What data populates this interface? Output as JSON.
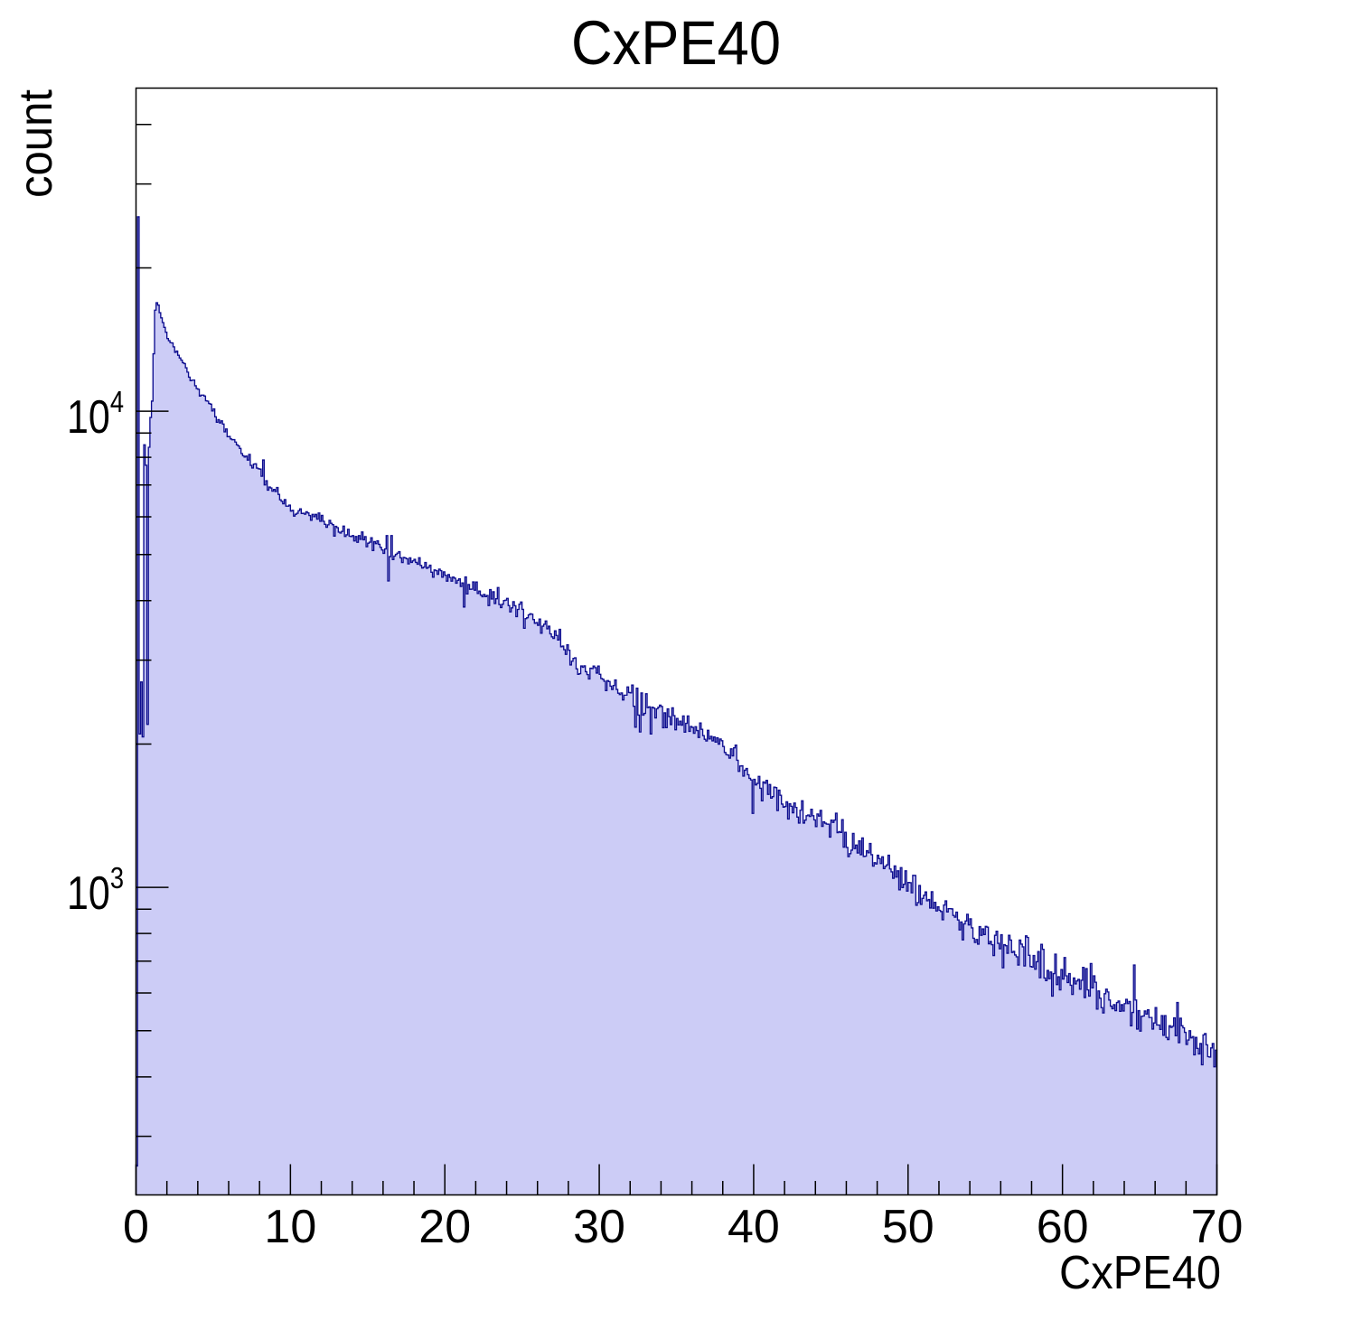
{
  "title": "CxPE40",
  "colors": {
    "background": "#ffffff",
    "hist_fill": "#ccccf6",
    "hist_line": "#0d0d8f",
    "axis": "#000000",
    "text": "#000000"
  },
  "chart_data": {
    "type": "bar",
    "subtype": "filled-step-histogram",
    "title": "CxPE40",
    "xlabel": "CxPE40",
    "ylabel": "count",
    "x_start": 0,
    "bin_width": 0.1,
    "n_bins": 700,
    "xlim": [
      0,
      70
    ],
    "ylim": [
      226,
      47700
    ],
    "yscale": "log",
    "xscale": "linear",
    "grid": false,
    "legend": false,
    "x_major_ticks": [
      0,
      10,
      20,
      30,
      40,
      50,
      60,
      70
    ],
    "x_tick_labels": [
      "0",
      "10",
      "20",
      "30",
      "40",
      "50",
      "60",
      "70"
    ],
    "x_minor_tick_step": 2,
    "y_major_ticks": [
      1000,
      10000
    ],
    "y_tick_labels": [
      {
        "base": "10",
        "exp": "3"
      },
      {
        "base": "10",
        "exp": "4"
      }
    ],
    "counts": [
      260,
      25600,
      2100,
      2700,
      2070,
      8500,
      7700,
      2200,
      8400,
      9700,
      10500,
      13200,
      16300,
      16900,
      16700,
      16100,
      15700,
      15350,
      15000,
      14650,
      14207,
      14061,
      13929,
      13910,
      13650,
      13292,
      13372,
      13104,
      12933,
      12804,
      12640,
      12586,
      12333,
      12078,
      11787,
      11592,
      11619,
      11621,
      11311,
      11154,
      11119,
      10759,
      10807,
      10811,
      10762,
      10518,
      10496,
      10379,
      10347,
      10010,
      10110,
      9730,
      9477,
      9602,
      9447,
      9545,
      9396,
      9050,
      9177,
      8841,
      8849,
      8744,
      8711,
      8714,
      8613,
      8499,
      8453,
      8352,
      8147,
      8059,
      8012,
      8049,
      7895,
      8116,
      7695,
      7600,
      7743,
      7755,
      7594,
      7570,
      7559,
      7302,
      7900,
      7000,
      7144,
      6826,
      6928,
      6900,
      6792,
      6849,
      6784,
      6915,
      6687,
      6513,
      6468,
      6392,
      6520,
      6317,
      6317,
      6349,
      6169,
      6191,
      6021,
      6074,
      6104,
      6180,
      6237,
      6098,
      6105,
      6076,
      6149,
      6115,
      6039,
      5900,
      6070,
      6004,
      6071,
      5934,
      6113,
      5873,
      6042,
      5873,
      5787,
      5705,
      5772,
      5898,
      5814,
      5777,
      5467,
      5729,
      5694,
      5573,
      5549,
      5590,
      5736,
      5458,
      5499,
      5650,
      5464,
      5455,
      5480,
      5339,
      5455,
      5306,
      5480,
      5381,
      5575,
      5370,
      5453,
      5192,
      5281,
      5307,
      5423,
      5097,
      5322,
      5271,
      5342,
      5252,
      5177,
      5111,
      5029,
      5137,
      5480,
      4400,
      4950,
      5480,
      4880,
      4964,
      5003,
      5033,
      5070,
      4920,
      4810,
      4930,
      4918,
      4899,
      4778,
      4921,
      4813,
      4849,
      4885,
      4813,
      4772,
      4923,
      4742,
      4683,
      4705,
      4811,
      4679,
      4701,
      4748,
      4591,
      4480,
      4640,
      4624,
      4544,
      4659,
      4626,
      4482,
      4599,
      4523,
      4397,
      4537,
      4475,
      4397,
      4483,
      4460,
      4352,
      4413,
      4444,
      4284,
      4359,
      3880,
      4487,
      4132,
      4324,
      4227,
      4229,
      4379,
      4207,
      4378,
      4142,
      4190,
      4108,
      4077,
      4122,
      4079,
      4103,
      3908,
      4220,
      4032,
      4176,
      3946,
      4038,
      4263,
      3927,
      3869,
      3932,
      4002,
      4010,
      4045,
      3907,
      3789,
      3863,
      3980,
      3903,
      3703,
      3834,
      3932,
      3975,
      3836,
      3500,
      3668,
      3683,
      3735,
      3755,
      3746,
      3651,
      3586,
      3599,
      3551,
      3660,
      3417,
      3536,
      3569,
      3625,
      3491,
      3535,
      3407,
      3358,
      3333,
      3457,
      3381,
      3308,
      3483,
      3201,
      3212,
      3156,
      3085,
      3231,
      3148,
      2932,
      2985,
      3026,
      3035,
      2876,
      2802,
      2811,
      2917,
      2900,
      2919,
      2837,
      2799,
      2739,
      2886,
      2881,
      2915,
      2893,
      2819,
      2915,
      2801,
      2746,
      2735,
      2710,
      2590,
      2718,
      2705,
      2645,
      2604,
      2654,
      2726,
      2604,
      2557,
      2540,
      2561,
      2475,
      2533,
      2533,
      2636,
      2566,
      2562,
      2660,
      2400,
      2170,
      2620,
      2300,
      2120,
      2560,
      2300,
      2319,
      2550,
      2384,
      2394,
      2100,
      2390,
      2380,
      2269,
      2371,
      2390,
      2414,
      2398,
      2164,
      2326,
      2165,
      2370,
      2283,
      2197,
      2382,
      2294,
      2143,
      2263,
      2193,
      2234,
      2191,
      2291,
      2118,
      2210,
      2291,
      2126,
      2177,
      2167,
      2107,
      2175,
      2134,
      2065,
      2214,
      2147,
      2083,
      2047,
      2030,
      2137,
      2050,
      2076,
      2031,
      2069,
      2019,
      2061,
      1999,
      2049,
      2032,
      1976,
      1920,
      1900,
      1896,
      1868,
      1954,
      1889,
      1963,
      1989,
      1849,
      1752,
      1798,
      1800,
      1713,
      1762,
      1777,
      1724,
      1694,
      1681,
      1430,
      1686,
      1641,
      1653,
      1710,
      1615,
      1520,
      1665,
      1655,
      1678,
      1568,
      1644,
      1540,
      1551,
      1624,
      1620,
      1450,
      1600,
      1561,
      1496,
      1474,
      1479,
      1512,
      1392,
      1498,
      1480,
      1434,
      1503,
      1472,
      1405,
      1365,
      1452,
      1520,
      1365,
      1384,
      1414,
      1419,
      1409,
      1459,
      1414,
      1386,
      1342,
      1426,
      1412,
      1451,
      1343,
      1373,
      1364,
      1358,
      1357,
      1275,
      1384,
      1369,
      1384,
      1431,
      1303,
      1309,
      1304,
      1387,
      1215,
      1305,
      1213,
      1160,
      1177,
      1197,
      1298,
      1206,
      1227,
      1181,
      1252,
      1171,
      1270,
      1161,
      1163,
      1194,
      1182,
      1236,
      1171,
      1108,
      1127,
      1120,
      1168,
      1149,
      1122,
      1159,
      1095,
      1107,
      1115,
      1168,
      1093,
      1078,
      1045,
      1109,
      1051,
      1083,
      988,
      1100,
      999,
      1015,
      1083,
      982,
      1024,
      1023,
      974,
      1060,
      1059,
      917,
      929,
      1009,
      921,
      948,
      962,
      978,
      937,
      943,
      905,
      979,
      904,
      930,
      892,
      910,
      895,
      890,
      855,
      918,
      937,
      888,
      902,
      902,
      901,
      873,
      866,
      887,
      854,
      814,
      846,
      776,
      838,
      850,
      878,
      834,
      859,
      822,
      782,
      766,
      777,
      760,
      827,
      793,
      818,
      796,
      828,
      825,
      761,
      770,
      758,
      719,
      793,
      809,
      763,
      743,
      795,
      678,
      758,
      754,
      727,
      793,
      775,
      730,
      734,
      721,
      715,
      687,
      775,
      760,
      750,
      684,
      791,
      785,
      720,
      682,
      680,
      719,
      673,
      698,
      733,
      646,
      759,
      741,
      645,
      637,
      669,
      643,
      664,
      591,
      659,
      724,
      625,
      649,
      609,
      672,
      642,
      712,
      652,
      631,
      659,
      623,
      596,
      645,
      627,
      636,
      641,
      611,
      638,
      679,
      587,
      675,
      609,
      591,
      692,
      615,
      652,
      632,
      555,
      606,
      585,
      559,
      545,
      598,
      611,
      603,
      580,
      563,
      556,
      567,
      551,
      573,
      577,
      549,
      567,
      550,
      570,
      582,
      570,
      576,
      512,
      546,
      687,
      580,
      504,
      551,
      499,
      536,
      537,
      550,
      542,
      553,
      533,
      533,
      504,
      519,
      559,
      514,
      514,
      503,
      538,
      489,
      538,
      484,
      479,
      512,
      508,
      511,
      532,
      488,
      573,
      472,
      531,
      512,
      507,
      496,
      468,
      478,
      500,
      483,
      486,
      445,
      484,
      459,
      447,
      470,
      424,
      490,
      493,
      467,
      441,
      440,
      460,
      470,
      420,
      455
    ]
  }
}
